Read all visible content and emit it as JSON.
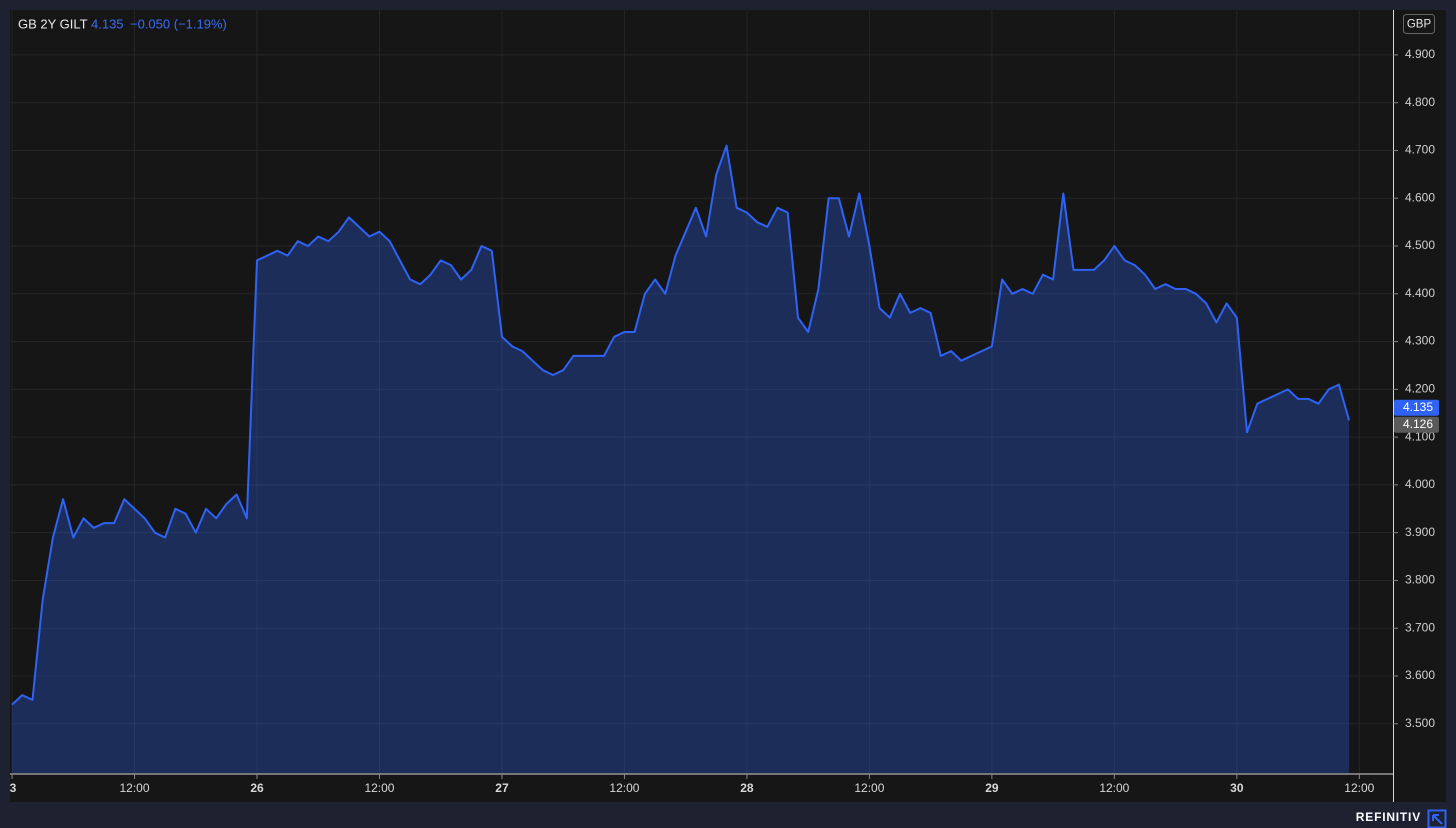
{
  "chart_data": {
    "type": "area",
    "title": "GB 2Y GILT",
    "last": 4.135,
    "change": "−0.050 (−1.19%)",
    "currency": "GBP",
    "reference": 4.126,
    "source": "REFINITIV",
    "color": "#2f63f5",
    "grid": true,
    "xlim": [
      -0.2,
      135.3
    ],
    "ylim": [
      3.397,
      4.994
    ],
    "xticks": [
      {
        "value": 0,
        "label": "3"
      },
      {
        "value": 12,
        "label": "12:00"
      },
      {
        "value": 24,
        "label": "26"
      },
      {
        "value": 36,
        "label": "12:00"
      },
      {
        "value": 48,
        "label": "27"
      },
      {
        "value": 60,
        "label": "12:00"
      },
      {
        "value": 72,
        "label": "28"
      },
      {
        "value": 84,
        "label": "12:00"
      },
      {
        "value": 96,
        "label": "29"
      },
      {
        "value": 108,
        "label": "12:00"
      },
      {
        "value": 120,
        "label": "30"
      },
      {
        "value": 132,
        "label": "12:00"
      }
    ],
    "yticks": [
      {
        "value": 3.5,
        "label": "3.500"
      },
      {
        "value": 3.6,
        "label": "3.600"
      },
      {
        "value": 3.7,
        "label": "3.700"
      },
      {
        "value": 3.8,
        "label": "3.800"
      },
      {
        "value": 3.9,
        "label": "3.900"
      },
      {
        "value": 4.0,
        "label": "4.000"
      },
      {
        "value": 4.1,
        "label": "4.100"
      },
      {
        "value": 4.2,
        "label": "4.200"
      },
      {
        "value": 4.3,
        "label": "4.300"
      },
      {
        "value": 4.4,
        "label": "4.400"
      },
      {
        "value": 4.5,
        "label": "4.500"
      },
      {
        "value": 4.6,
        "label": "4.600"
      },
      {
        "value": 4.7,
        "label": "4.700"
      },
      {
        "value": 4.8,
        "label": "4.800"
      },
      {
        "value": 4.9,
        "label": "4.900"
      }
    ],
    "x": [
      0,
      1,
      2,
      3,
      4,
      5,
      6,
      7,
      8,
      9,
      10,
      11,
      12,
      13,
      14,
      15,
      16,
      17,
      18,
      19,
      20,
      21,
      22,
      23,
      24,
      25,
      26,
      27,
      28,
      29,
      30,
      31,
      32,
      33,
      34,
      35,
      36,
      37,
      38,
      39,
      40,
      41,
      42,
      43,
      44,
      45,
      46,
      47,
      48,
      49,
      50,
      51,
      52,
      53,
      54,
      55,
      56,
      57,
      58,
      59,
      60,
      61,
      62,
      63,
      64,
      65,
      66,
      67,
      68,
      69,
      70,
      71,
      72,
      73,
      74,
      75,
      76,
      77,
      78,
      79,
      80,
      81,
      82,
      83,
      84,
      85,
      86,
      87,
      88,
      89,
      90,
      91,
      92,
      93,
      94,
      95,
      96,
      97,
      98,
      99,
      100,
      101,
      102,
      103,
      104,
      105,
      106,
      107,
      108,
      109,
      110,
      111,
      112,
      113,
      114,
      115,
      116,
      117,
      118,
      119,
      120,
      121,
      122,
      123,
      124,
      125,
      126,
      127,
      128,
      129,
      130,
      131
    ],
    "values": [
      3.54,
      3.56,
      3.55,
      3.76,
      3.89,
      3.97,
      3.89,
      3.93,
      3.91,
      3.92,
      3.92,
      3.97,
      3.95,
      3.93,
      3.9,
      3.89,
      3.95,
      3.94,
      3.9,
      3.95,
      3.93,
      3.96,
      3.98,
      3.93,
      4.47,
      4.48,
      4.49,
      4.48,
      4.51,
      4.5,
      4.52,
      4.51,
      4.53,
      4.56,
      4.54,
      4.52,
      4.53,
      4.51,
      4.47,
      4.43,
      4.42,
      4.44,
      4.47,
      4.46,
      4.43,
      4.45,
      4.5,
      4.49,
      4.31,
      4.29,
      4.28,
      4.26,
      4.24,
      4.23,
      4.24,
      4.27,
      4.27,
      4.27,
      4.27,
      4.31,
      4.32,
      4.32,
      4.4,
      4.43,
      4.4,
      4.48,
      4.53,
      4.58,
      4.52,
      4.65,
      4.71,
      4.58,
      4.57,
      4.55,
      4.54,
      4.58,
      4.57,
      4.35,
      4.32,
      4.41,
      4.6,
      4.6,
      4.52,
      4.61,
      4.5,
      4.37,
      4.35,
      4.4,
      4.36,
      4.37,
      4.36,
      4.27,
      4.28,
      4.26,
      4.27,
      4.28,
      4.29,
      4.43,
      4.4,
      4.41,
      4.4,
      4.44,
      4.43,
      4.61,
      4.45,
      4.45,
      4.45,
      4.47,
      4.5,
      4.47,
      4.46,
      4.44,
      4.41,
      4.42,
      4.41,
      4.41,
      4.4,
      4.38,
      4.34,
      4.38,
      4.35,
      4.11,
      4.17,
      4.18,
      4.19,
      4.2,
      4.18,
      4.18,
      4.17,
      4.2,
      4.21,
      4.135
    ]
  }
}
